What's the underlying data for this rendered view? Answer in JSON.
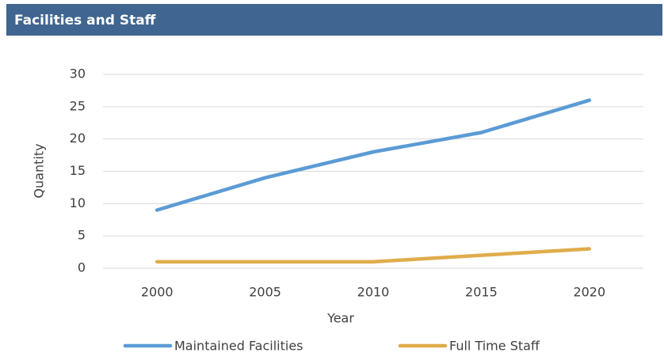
{
  "chart_data": {
    "type": "line",
    "title": "Facilities and Staff",
    "x_label": "Year",
    "y_label": "Quantity",
    "categories": [
      "2000",
      "2005",
      "2010",
      "2015",
      "2020"
    ],
    "series": [
      {
        "name": "Maintained Facilities",
        "color": "#5b9bd5",
        "values": [
          9,
          14,
          18,
          21,
          26
        ]
      },
      {
        "name": "Full Time Staff",
        "color": "#e0ac4b",
        "values": [
          1,
          1,
          1,
          2,
          3
        ]
      }
    ],
    "ylim": [
      0,
      30
    ],
    "yticks": [
      0,
      5,
      10,
      15,
      20,
      25,
      30
    ],
    "grid": true,
    "legend": "bottom"
  }
}
